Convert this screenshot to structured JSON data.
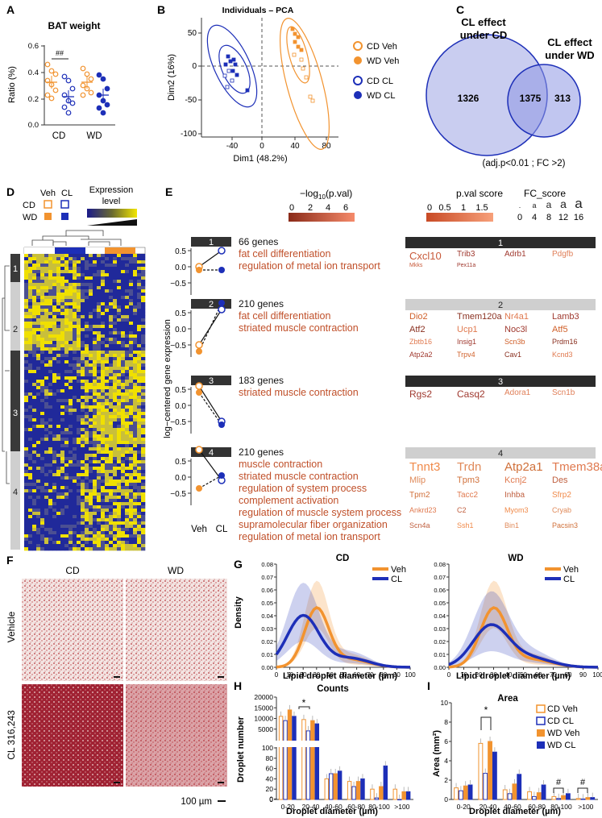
{
  "panels": {
    "A": "A",
    "B": "B",
    "C": "C",
    "D": "D",
    "E": "E",
    "F": "F",
    "G": "G",
    "H": "H",
    "I": "I"
  },
  "panelA": {
    "title": "BAT weight",
    "ylabel": "Ratio (%)",
    "yticks": [
      "0.0",
      "0.2",
      "0.4",
      "0.6"
    ],
    "groups": [
      "CD",
      "WD"
    ],
    "sig": "##",
    "colors": {
      "cd_orange": "#f2932f",
      "wd_blue": "#1d2fb8"
    }
  },
  "panelB": {
    "title": "Individuals – PCA",
    "xlabel": "Dim1 (48.2%)",
    "ylabel": "Dim2 (16%)",
    "xticks": [
      "-40",
      "0",
      "40",
      "80"
    ],
    "yticks": [
      "50",
      "0",
      "-50",
      "-100"
    ],
    "legend": [
      "CD Veh",
      "WD Veh",
      "CD  CL",
      "WD  CL"
    ]
  },
  "panelC": {
    "label_left": "CL effect\nunder CD",
    "label_right": "CL effect\nunder WD",
    "only_cd": "1326",
    "both": "1375",
    "only_wd": "313",
    "caption": "(adj.p<0.01 ; FC >2)"
  },
  "panelD": {
    "veh": "Veh",
    "cl": "CL",
    "cd": "CD",
    "wd": "WD",
    "expr": "Expression",
    "level": "level",
    "clusters": [
      "1",
      "2",
      "3",
      "4"
    ]
  },
  "panelE": {
    "log_title": "−log",
    "log_sub": "10",
    "log_title_end": "(p.val)",
    "log_ticks": [
      "0",
      "2",
      "4",
      "6"
    ],
    "pval_title": "p.val score",
    "pval_ticks": [
      "0",
      "0.5",
      "1",
      "1.5"
    ],
    "fc_title": "FC_score",
    "fc_ticks": [
      "0",
      "4",
      "8",
      "12",
      "16"
    ],
    "ylabel": "log−centered gene expression",
    "xticks": [
      "Veh",
      "CL"
    ],
    "clusters": [
      {
        "num": "1",
        "count": "66 genes",
        "terms": [
          "fat cell differentiation",
          "regulation of metal ion transport"
        ],
        "genes": [
          [
            "Cxcl10",
            "Trib3",
            "Adrb1",
            "Pdgfb"
          ],
          [
            "Mkks",
            "Pex11a",
            "",
            ""
          ]
        ]
      },
      {
        "num": "2",
        "count": "210 genes",
        "terms": [
          "fat cell differentiation",
          "striated muscle contraction"
        ],
        "genes": [
          [
            "Dio2",
            "Tmem120a",
            "Nr4a1",
            "Lamb3"
          ],
          [
            "Atf2",
            "Ucp1",
            "Noc3l",
            "Atf5"
          ],
          [
            "Zbtb16",
            "Insig1",
            "Scn3b",
            "Prdm16"
          ],
          [
            "Atp2a2",
            "Trpv4",
            "Cav1",
            "Kcnd3"
          ]
        ]
      },
      {
        "num": "3",
        "count": "183 genes",
        "terms": [
          "striated muscle contraction"
        ],
        "genes": [
          [
            "Rgs2",
            "Casq2",
            "Adora1",
            "Scn1b"
          ]
        ]
      },
      {
        "num": "4",
        "count": "210 genes",
        "terms": [
          "muscle contraction",
          "striated muscle contraction",
          "regulation of system process",
          "complement activation",
          "regulation of muscle system process",
          "supramolecular fiber organization",
          "regulation of metal ion transport"
        ],
        "genes": [
          [
            "Tnnt3",
            "Trdn",
            "Atp2a1",
            "Tmem38a"
          ],
          [
            "Mlip",
            "Tpm3",
            "Kcnj2",
            "Des"
          ],
          [
            "Tpm2",
            "Tacc2",
            "Inhba",
            "Sfrp2"
          ],
          [
            "Ankrd23",
            "C2",
            "Myom3",
            "Cryab"
          ],
          [
            "Scn4a",
            "Ssh1",
            "Bin1",
            "Pacsin3"
          ]
        ]
      }
    ]
  },
  "panelF": {
    "cd": "CD",
    "wd": "WD",
    "vehicle": "Vehicle",
    "cl": "CL 316,243",
    "scale": "100 µm"
  },
  "panelG": {
    "cd_title": "CD",
    "wd_title": "WD",
    "ylabel": "Density",
    "xlabel": "Lipid droplet diameter (µm)",
    "xticks": [
      "0",
      "10",
      "20",
      "30",
      "40",
      "50",
      "60",
      "70",
      "80",
      "90",
      "100"
    ],
    "yticks": [
      "0.00",
      "0.01",
      "0.02",
      "0.03",
      "0.04",
      "0.05",
      "0.06",
      "0.07",
      "0.08"
    ],
    "legend": [
      "Veh",
      "CL"
    ]
  },
  "panelH": {
    "title": "Counts",
    "ylabel": "Droplet number",
    "xlabel": "Droplet diameter (µm)",
    "yticks_top": [
      "20000",
      "15000",
      "10000",
      "5000",
      "0"
    ],
    "yticks_bottom": [
      "100",
      "80",
      "60",
      "40",
      "20",
      "0"
    ],
    "categories": [
      "0-20",
      "20-40",
      "40-60",
      "60-80",
      "80-100",
      ">100"
    ],
    "sig": "*"
  },
  "panelI": {
    "title": "Area",
    "ylabel": "Area (mm²)",
    "xlabel": "Droplet diameter (µm)",
    "yticks": [
      "10",
      "8",
      "6",
      "4",
      "2",
      "0"
    ],
    "categories": [
      "0-20",
      "20-40",
      "40-60",
      "60-80",
      "80-100",
      ">100"
    ],
    "legend": [
      "CD Veh",
      "CD  CL",
      "WD Veh",
      "WD  CL"
    ],
    "sig": "*",
    "hash": "#"
  },
  "chart_data": [
    {
      "type": "bar",
      "title": "Counts",
      "xlabel": "Droplet diameter (µm)",
      "ylabel": "Droplet number",
      "categories": [
        "0-20",
        "20-40",
        "40-60",
        "60-80",
        "80-100",
        ">100"
      ],
      "series": [
        {
          "name": "CD Veh",
          "values": [
            11000,
            9500,
            40,
            35,
            20,
            20
          ]
        },
        {
          "name": "CD  CL",
          "values": [
            9000,
            4200,
            50,
            25,
            3,
            0
          ]
        },
        {
          "name": "WD Veh",
          "values": [
            14000,
            9000,
            50,
            35,
            25,
            15
          ]
        },
        {
          "name": "WD  CL",
          "values": [
            11000,
            7500,
            55,
            40,
            65,
            15
          ]
        }
      ]
    },
    {
      "type": "bar",
      "title": "Area",
      "xlabel": "Droplet diameter (µm)",
      "ylabel": "Area (mm²)",
      "categories": [
        "0-20",
        "20-40",
        "40-60",
        "60-80",
        "80-100",
        ">100"
      ],
      "ylim": [
        0,
        10
      ],
      "series": [
        {
          "name": "CD Veh",
          "values": [
            1.2,
            5.8,
            1.0,
            0.8,
            0.3,
            0.1
          ]
        },
        {
          "name": "CD  CL",
          "values": [
            0.9,
            2.7,
            0.6,
            0.3,
            0.1,
            0.05
          ]
        },
        {
          "name": "WD Veh",
          "values": [
            1.4,
            6.0,
            1.6,
            0.7,
            0.4,
            0.2
          ]
        },
        {
          "name": "WD  CL",
          "values": [
            1.5,
            4.9,
            2.6,
            1.5,
            0.6,
            0.2
          ]
        }
      ]
    }
  ]
}
